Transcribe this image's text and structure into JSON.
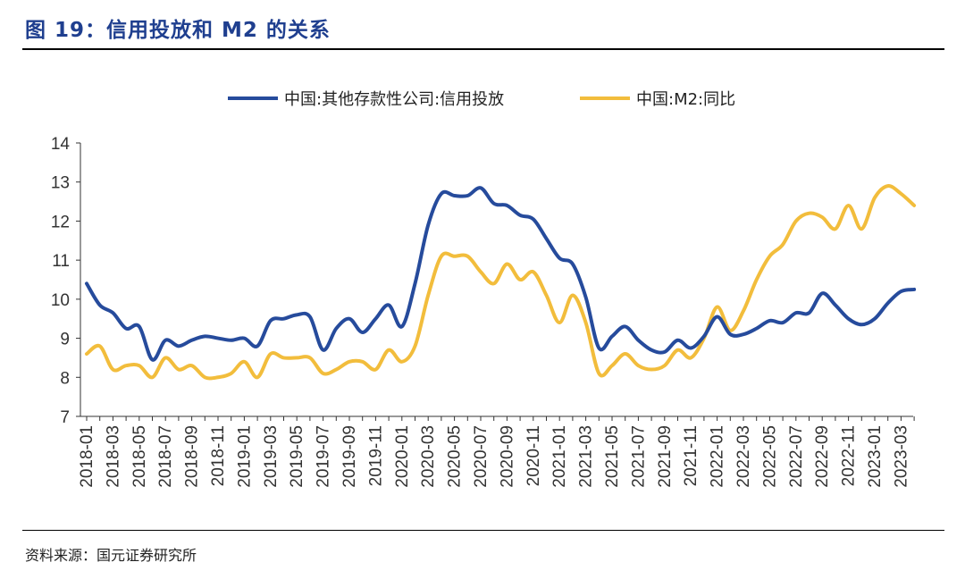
{
  "header": {
    "figure_title": "图 19：信用投放和 M2 的关系"
  },
  "footer": {
    "source_label": "资料来源：",
    "source_value": "国元证券研究所"
  },
  "chart_data": {
    "type": "line",
    "title": "图 19：信用投放和 M2 的关系",
    "xlabel": "",
    "ylabel": "",
    "ylim": [
      7,
      14
    ],
    "yticks": [
      7,
      8,
      9,
      10,
      11,
      12,
      13,
      14
    ],
    "legend_position": "top-center",
    "grid": false,
    "x": [
      "2018-01",
      "2018-02",
      "2018-03",
      "2018-04",
      "2018-05",
      "2018-06",
      "2018-07",
      "2018-08",
      "2018-09",
      "2018-10",
      "2018-11",
      "2018-12",
      "2019-01",
      "2019-02",
      "2019-03",
      "2019-04",
      "2019-05",
      "2019-06",
      "2019-07",
      "2019-08",
      "2019-09",
      "2019-10",
      "2019-11",
      "2019-12",
      "2020-01",
      "2020-02",
      "2020-03",
      "2020-04",
      "2020-05",
      "2020-06",
      "2020-07",
      "2020-08",
      "2020-09",
      "2020-10",
      "2020-11",
      "2020-12",
      "2021-01",
      "2021-02",
      "2021-03",
      "2021-04",
      "2021-05",
      "2021-06",
      "2021-07",
      "2021-08",
      "2021-09",
      "2021-10",
      "2021-11",
      "2021-12",
      "2022-01",
      "2022-02",
      "2022-03",
      "2022-04",
      "2022-05",
      "2022-06",
      "2022-07",
      "2022-08",
      "2022-09",
      "2022-10",
      "2022-11",
      "2022-12",
      "2023-01",
      "2023-02",
      "2023-03",
      "2023-04"
    ],
    "xtick_labels": [
      "2018-01",
      "2018-03",
      "2018-05",
      "2018-07",
      "2018-09",
      "2018-11",
      "2019-01",
      "2019-03",
      "2019-05",
      "2019-07",
      "2019-09",
      "2019-11",
      "2020-01",
      "2020-03",
      "2020-05",
      "2020-07",
      "2020-09",
      "2020-11",
      "2021-01",
      "2021-03",
      "2021-05",
      "2021-07",
      "2021-09",
      "2021-11",
      "2022-01",
      "2022-03",
      "2022-05",
      "2022-07",
      "2022-09",
      "2022-11",
      "2023-01",
      "2023-03"
    ],
    "series": [
      {
        "name": "中国:其他存款性公司:信用投放",
        "color": "#264b9c",
        "values": [
          10.4,
          9.85,
          9.65,
          9.25,
          9.3,
          8.45,
          8.95,
          8.8,
          8.95,
          9.05,
          9.0,
          8.95,
          9.0,
          8.8,
          9.45,
          9.5,
          9.6,
          9.55,
          8.7,
          9.25,
          9.5,
          9.15,
          9.5,
          9.85,
          9.3,
          10.4,
          11.9,
          12.7,
          12.65,
          12.65,
          12.85,
          12.45,
          12.4,
          12.15,
          12.05,
          11.55,
          11.05,
          10.9,
          10.05,
          8.75,
          9.05,
          9.3,
          8.95,
          8.7,
          8.65,
          8.95,
          8.75,
          9.05,
          9.55,
          9.1,
          9.1,
          9.25,
          9.45,
          9.4,
          9.65,
          9.65,
          10.15,
          9.85,
          9.5,
          9.35,
          9.5,
          9.9,
          10.2,
          10.25
        ]
      },
      {
        "name": "中国:M2:同比",
        "color": "#f2bd3c",
        "values": [
          8.6,
          8.8,
          8.2,
          8.3,
          8.3,
          8.0,
          8.5,
          8.2,
          8.3,
          8.0,
          8.0,
          8.1,
          8.4,
          8.0,
          8.6,
          8.5,
          8.5,
          8.5,
          8.1,
          8.2,
          8.4,
          8.4,
          8.2,
          8.7,
          8.4,
          8.8,
          10.1,
          11.1,
          11.1,
          11.1,
          10.7,
          10.4,
          10.9,
          10.5,
          10.7,
          10.1,
          9.4,
          10.1,
          9.4,
          8.1,
          8.3,
          8.6,
          8.3,
          8.2,
          8.3,
          8.7,
          8.5,
          9.0,
          9.8,
          9.2,
          9.7,
          10.5,
          11.1,
          11.4,
          12.0,
          12.2,
          12.1,
          11.8,
          12.4,
          11.8,
          12.6,
          12.9,
          12.7,
          12.4
        ]
      }
    ]
  }
}
